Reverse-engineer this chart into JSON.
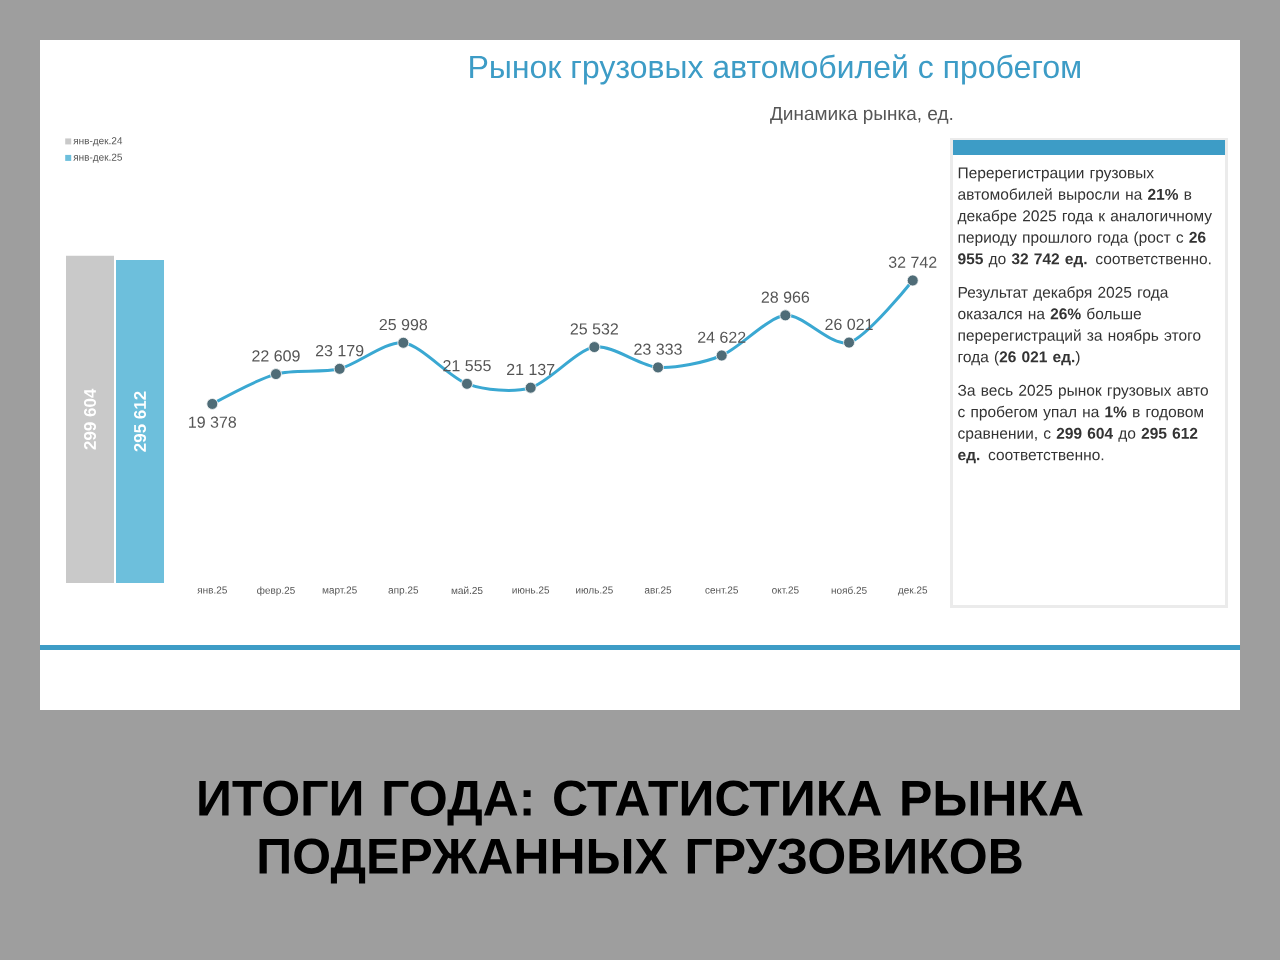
{
  "chart_data": [
    {
      "type": "bar",
      "annotations": [
        "ИТОГИ ГОДА: СТАТИСТИКА РЫНКА ПОДЕРЖАННЫХ ГРУЗОВИКОВ"
      ],
      "categories": [
        null
      ],
      "legend": "top left",
      "series": [
        {
          "name": "янв-дек.24",
          "color": "#c9c9c9",
          "values": [
            299604
          ],
          "value_labels": [
            "299 604"
          ]
        },
        {
          "name": "янв-дек.25",
          "color": "#6dbfdc",
          "values": [
            295612
          ],
          "value_labels": [
            "295 612"
          ]
        }
      ]
    },
    {
      "type": "line",
      "title": "Рынок грузовых автомобилей с пробегом",
      "subtitle": "Динамика рынка, ед.",
      "categories": [
        "янв.25",
        "февр.25",
        "март.25",
        "апр.25",
        "май.25",
        "июнь.25",
        "июль.25",
        "авг.25",
        "сент.25",
        "окт.25",
        "нояб.25",
        "дек.25"
      ],
      "marker": "circle",
      "line_style": "solid",
      "series": [
        {
          "color": "#3aa8d2",
          "values": [
            19378,
            22609,
            23179,
            25998,
            21555,
            21137,
            25532,
            23333,
            24622,
            28966,
            26021,
            32742
          ],
          "value_labels": [
            "19 378",
            "22 609",
            "23 179",
            "25 998",
            "21 555",
            "21 137",
            "25 532",
            "23 333",
            "24 622",
            "28 966",
            "26 021",
            "32 742"
          ]
        }
      ]
    },
    {
      "type": "other",
      "annotations": [
        "Перерегистрации грузовых автомобилей выросли на **21%** в декабре 2025 года к аналогичному периоду прошлого года (рост с **26 955** до **32 742 ед.** соответственно.",
        "Результат декабря 2025 года оказался на **26%** больше перерегистраций за ноябрь этого года (**26 021 ед.**)",
        "За весь 2025 рынок грузовых авто с пробегом упал на **1%** в годовом сравнении, с **299 604** до **295 612 ед.** соответственно."
      ]
    }
  ]
}
